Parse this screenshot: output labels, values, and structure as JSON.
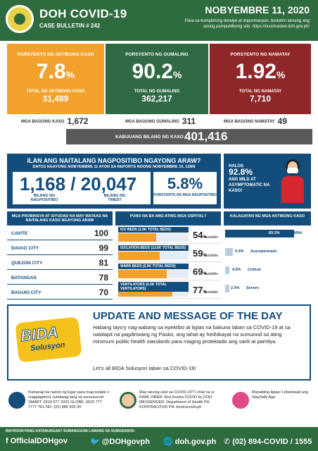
{
  "header": {
    "title": "DOH COVID-19",
    "bulletin": "CASE BULLETIN # 242",
    "date": "NOBYEMBRE 11, 2020",
    "note": "Para sa kumpletong detalye at impormasyon, bisitahin lamang ang aming pampublikong site: https://ncovtracker.doh.gov.ph/"
  },
  "stats": [
    {
      "label": "PORSYENTO NG AKTIBONG KASO",
      "pct": "7.8",
      "unit": "%",
      "sublabel": "TOTAL NG AKTIBONG KASO",
      "total": "31,489"
    },
    {
      "label": "PORSYENTO NG GUMALING",
      "pct": "90.2",
      "unit": "%",
      "sublabel": "TOTAL NG GUMALING",
      "total": "362,217"
    },
    {
      "label": "PORSYENTO NG NAMATAY",
      "pct": "1.92",
      "unit": "%",
      "sublabel": "TOTAL NG NAMATAY",
      "total": "7,710"
    }
  ],
  "new_cases": {
    "label": "MGA BAGONG KASO",
    "value": "1,672"
  },
  "new_recovered": {
    "label": "MGA BAGONG GUMALING",
    "value": "311"
  },
  "new_deaths": {
    "label": "MGA BAGONG NAMATAY",
    "value": "49"
  },
  "total_cases": {
    "label": "KABUUANG BILANG NG KASO",
    "value": "401,416"
  },
  "positivity": {
    "title": "ILAN ANG NAITALANG NAGPOSITIBO NGAYONG ARAW?",
    "subtitle": "DATOS NGAYONG NOBYEMBRE 11 AYON SA REPORTS NOONG NOBYEMBRE 10, 12NN",
    "figure": "1,168 / 20,047",
    "label_positive": "BILANG NG NAGPOSITIBO",
    "label_tested": "BILANG NG TINEST",
    "rate": "5.8%",
    "rate_label": "PORSYENTO NG MGA NAGPOSITIBO"
  },
  "mild": {
    "pre": "HALOS",
    "pct": "92.8%",
    "text": "ANG MILD AT ASYMPTOMATIC NA KASO!"
  },
  "provinces": {
    "header": "MGA PROBINSYA AT SIYUDAD NA MAY MATAAS NA NAITALANG KASO NGAYONG ARAW",
    "items": [
      {
        "name": "CAVITE",
        "value": "100"
      },
      {
        "name": "DAVAO CITY",
        "value": "99"
      },
      {
        "name": "QUEZON CITY",
        "value": "81"
      },
      {
        "name": "BATANGAS",
        "value": "78"
      },
      {
        "name": "BAGUIO CITY",
        "value": "70"
      }
    ]
  },
  "beds": {
    "header": "PUNO NA BA ANG ATING MGA OSPITAL?",
    "available": "Available",
    "items": [
      {
        "label": "ICU BEDS (1.9K TOTAL BEDS)",
        "value": "54",
        "unit": "%",
        "fill": 0.54
      },
      {
        "label": "ISOLATION BEDS (13.6K TOTAL BEDS)",
        "value": "59",
        "unit": "%",
        "fill": 0.59
      },
      {
        "label": "WARD BEDS (5.9K TOTAL BEDS)",
        "value": "69",
        "unit": "%",
        "fill": 0.69
      },
      {
        "label": "VENTILATORS (2.0K TOTAL VENTILATORS)",
        "value": "77",
        "unit": "%",
        "fill": 0.77
      }
    ]
  },
  "severity": {
    "header": "KALAGAYAN NG MGA AKTIBONG KASO",
    "items": [
      {
        "pct": "83.3%",
        "label": "Mild",
        "fill": 0.833
      },
      {
        "pct": "9.4%",
        "label": "Asymptomatic",
        "fill": 0.094
      },
      {
        "pct": "4.6%",
        "label": "Critical",
        "fill": 0.046
      },
      {
        "pct": "2.5%",
        "label": "Severe",
        "fill": 0.025
      }
    ]
  },
  "update": {
    "logo_main": "BIDA",
    "logo_sub": "Solusyon",
    "title": "UPDATE AND MESSAGE OF THE DAY",
    "body": "Habang tayo'y nag-aabang sa epektibo at ligtas na bakuna laban sa COVID-19 at sa nalalapit na pagdiriwang ng Pasko, ang lahat ay hinihikayat na sumunod sa ating minimum public health standards para maging protektado ang sarili at pamilya.",
    "footer": "Let's all BIDA Solusyon laban sa COVID-19!"
  },
  "contacts": [
    {
      "text": "Ihahanap ka namin ng lugar para mag-isolate o magpagamot, tumawag lang sa sumusunod: SMART: 0919 977 3333 GLOBE: 0915 777 7777 TEL NO: (02) 886 505 00"
    },
    {
      "text": "May tanong ukol sa COVID-19? I-chat na si KIRA! VIBER: Kira Kontra COVID by DOH MESSENGER: Department of Health PH KONTRACOVID PH: kontracovid.ph"
    },
    {
      "text": "Manatiling ligtas! I-download ang StaySafe App"
    }
  ],
  "footer": {
    "pre": "MAYROON PANG KATANUNGAN? SUMANGGUNI LAMANG SA SUMUSUNOD:",
    "facebook": "OfficialDOHgov",
    "twitter": "@DOHgovph",
    "web": "doh.gov.ph",
    "phone": "(02) 894-COVID / 1555"
  }
}
